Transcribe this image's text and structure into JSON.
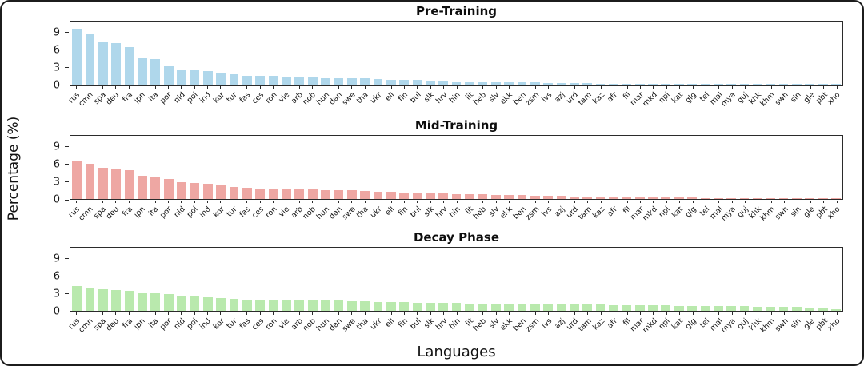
{
  "figure": {
    "ylabel": "Percentage (%)",
    "xlabel": "Languages"
  },
  "chart_data": [
    {
      "type": "bar",
      "title": "Pre-Training",
      "color": "#AFD7EB",
      "ylim": [
        0,
        11
      ],
      "yticks": [
        0,
        3,
        6,
        9
      ],
      "grid": false,
      "categories": [
        "rus",
        "cmn",
        "spa",
        "deu",
        "fra",
        "jpn",
        "ita",
        "por",
        "nld",
        "pol",
        "ind",
        "kor",
        "tur",
        "fas",
        "ces",
        "ron",
        "vie",
        "arb",
        "nob",
        "hun",
        "dan",
        "swe",
        "tha",
        "ukr",
        "ell",
        "fin",
        "bul",
        "slk",
        "hrv",
        "hin",
        "lit",
        "heb",
        "slv",
        "ekk",
        "ben",
        "zsm",
        "lvs",
        "azj",
        "urd",
        "tam",
        "kaz",
        "afr",
        "fil",
        "mar",
        "mkd",
        "npi",
        "kat",
        "glg",
        "tel",
        "mal",
        "mya",
        "guj",
        "khk",
        "khm",
        "swh",
        "sin",
        "gle",
        "pbt",
        "xho"
      ],
      "values": [
        9.8,
        8.8,
        7.5,
        7.3,
        6.5,
        4.6,
        4.4,
        3.4,
        2.7,
        2.6,
        2.4,
        2.1,
        1.8,
        1.6,
        1.55,
        1.5,
        1.45,
        1.4,
        1.35,
        1.3,
        1.25,
        1.2,
        1.05,
        0.95,
        0.9,
        0.85,
        0.8,
        0.72,
        0.65,
        0.6,
        0.55,
        0.5,
        0.48,
        0.45,
        0.4,
        0.36,
        0.32,
        0.3,
        0.27,
        0.24,
        0.21,
        0.19,
        0.17,
        0.15,
        0.13,
        0.12,
        0.11,
        0.1,
        0.09,
        0.08,
        0.07,
        0.06,
        0.06,
        0.05,
        0.05,
        0.04,
        0.04,
        0.03,
        0.02
      ]
    },
    {
      "type": "bar",
      "title": "Mid-Training",
      "color": "#EEA7A3",
      "ylim": [
        0,
        11
      ],
      "yticks": [
        0,
        3,
        6,
        9
      ],
      "grid": false,
      "categories": [
        "rus",
        "cmn",
        "spa",
        "deu",
        "fra",
        "jpn",
        "ita",
        "por",
        "nld",
        "pol",
        "ind",
        "kor",
        "tur",
        "fas",
        "ces",
        "ron",
        "vie",
        "arb",
        "nob",
        "hun",
        "dan",
        "swe",
        "tha",
        "ukr",
        "ell",
        "fin",
        "bul",
        "slk",
        "hrv",
        "hin",
        "lit",
        "heb",
        "slv",
        "ekk",
        "ben",
        "zsm",
        "lvs",
        "azj",
        "urd",
        "tam",
        "kaz",
        "afr",
        "fil",
        "mar",
        "mkd",
        "npi",
        "kat",
        "glg",
        "tel",
        "mal",
        "mya",
        "guj",
        "khk",
        "khm",
        "swh",
        "sin",
        "gle",
        "pbt",
        "xho"
      ],
      "values": [
        6.6,
        6.1,
        5.4,
        5.2,
        5.0,
        4.0,
        3.9,
        3.5,
        2.9,
        2.85,
        2.6,
        2.3,
        2.1,
        1.9,
        1.85,
        1.8,
        1.78,
        1.7,
        1.65,
        1.6,
        1.58,
        1.5,
        1.4,
        1.3,
        1.25,
        1.15,
        1.1,
        1.0,
        0.95,
        0.9,
        0.85,
        0.8,
        0.75,
        0.7,
        0.65,
        0.6,
        0.55,
        0.5,
        0.45,
        0.42,
        0.4,
        0.36,
        0.33,
        0.3,
        0.28,
        0.26,
        0.24,
        0.22,
        0.2,
        0.19,
        0.17,
        0.16,
        0.15,
        0.14,
        0.13,
        0.12,
        0.11,
        0.1,
        0.08
      ]
    },
    {
      "type": "bar",
      "title": "Decay Phase",
      "color": "#B9E9AD",
      "ylim": [
        0,
        11
      ],
      "yticks": [
        0,
        3,
        6,
        9
      ],
      "grid": false,
      "categories": [
        "rus",
        "cmn",
        "spa",
        "deu",
        "fra",
        "jpn",
        "ita",
        "por",
        "nld",
        "pol",
        "ind",
        "kor",
        "tur",
        "fas",
        "ces",
        "ron",
        "vie",
        "arb",
        "nob",
        "hun",
        "dan",
        "swe",
        "tha",
        "ukr",
        "ell",
        "fin",
        "bul",
        "slk",
        "hrv",
        "hin",
        "lit",
        "heb",
        "slv",
        "ekk",
        "ben",
        "zsm",
        "lvs",
        "azj",
        "urd",
        "tam",
        "kaz",
        "afr",
        "fil",
        "mar",
        "mkd",
        "npi",
        "kat",
        "glg",
        "tel",
        "mal",
        "mya",
        "guj",
        "khk",
        "khm",
        "swh",
        "sin",
        "gle",
        "pbt",
        "xho"
      ],
      "values": [
        4.3,
        4.05,
        3.7,
        3.65,
        3.45,
        3.1,
        3.05,
        2.9,
        2.55,
        2.5,
        2.4,
        2.25,
        2.1,
        2.0,
        1.95,
        1.9,
        1.88,
        1.85,
        1.8,
        1.78,
        1.75,
        1.7,
        1.65,
        1.6,
        1.55,
        1.5,
        1.45,
        1.42,
        1.38,
        1.35,
        1.3,
        1.28,
        1.25,
        1.22,
        1.2,
        1.18,
        1.15,
        1.12,
        1.1,
        1.08,
        1.05,
        1.02,
        1.0,
        0.98,
        0.95,
        0.92,
        0.9,
        0.88,
        0.85,
        0.82,
        0.8,
        0.78,
        0.75,
        0.72,
        0.7,
        0.65,
        0.6,
        0.5,
        0.35
      ]
    }
  ]
}
